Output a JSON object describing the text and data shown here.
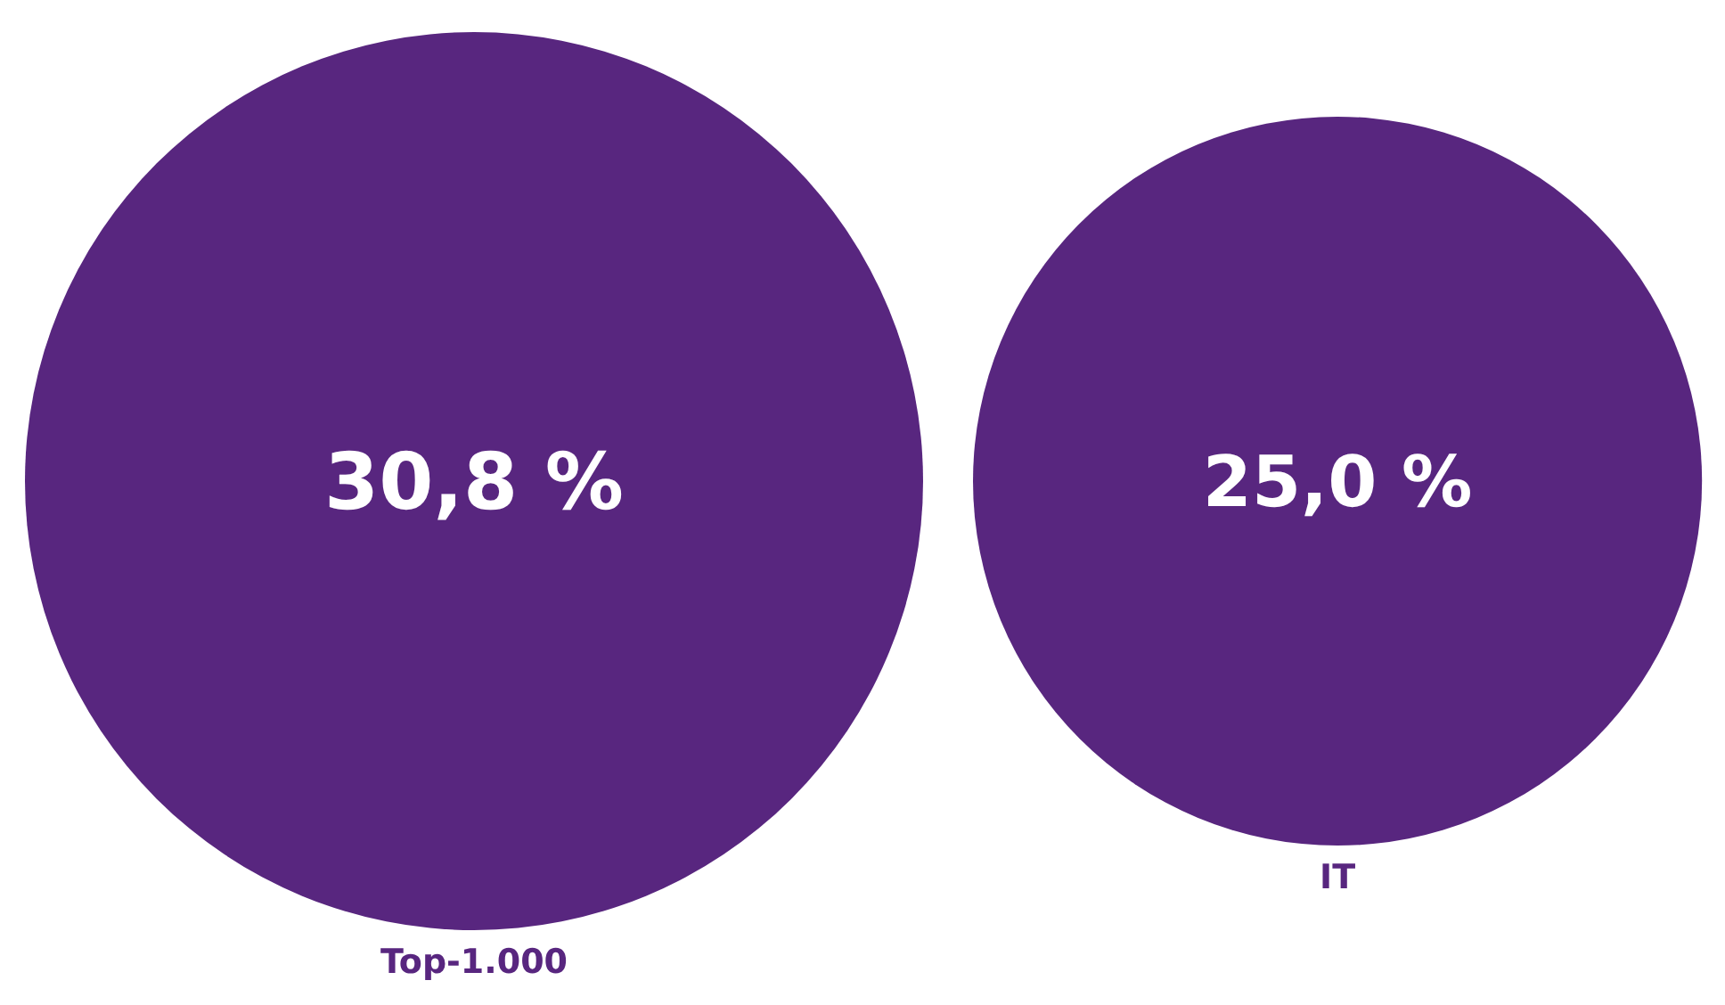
{
  "chart_data": {
    "type": "other",
    "categories": [
      "Top-1.000",
      "IT"
    ],
    "values": [
      30.8,
      25.0
    ],
    "value_labels": [
      "30,8 %",
      "25,0 %"
    ],
    "color": "#58267f"
  }
}
